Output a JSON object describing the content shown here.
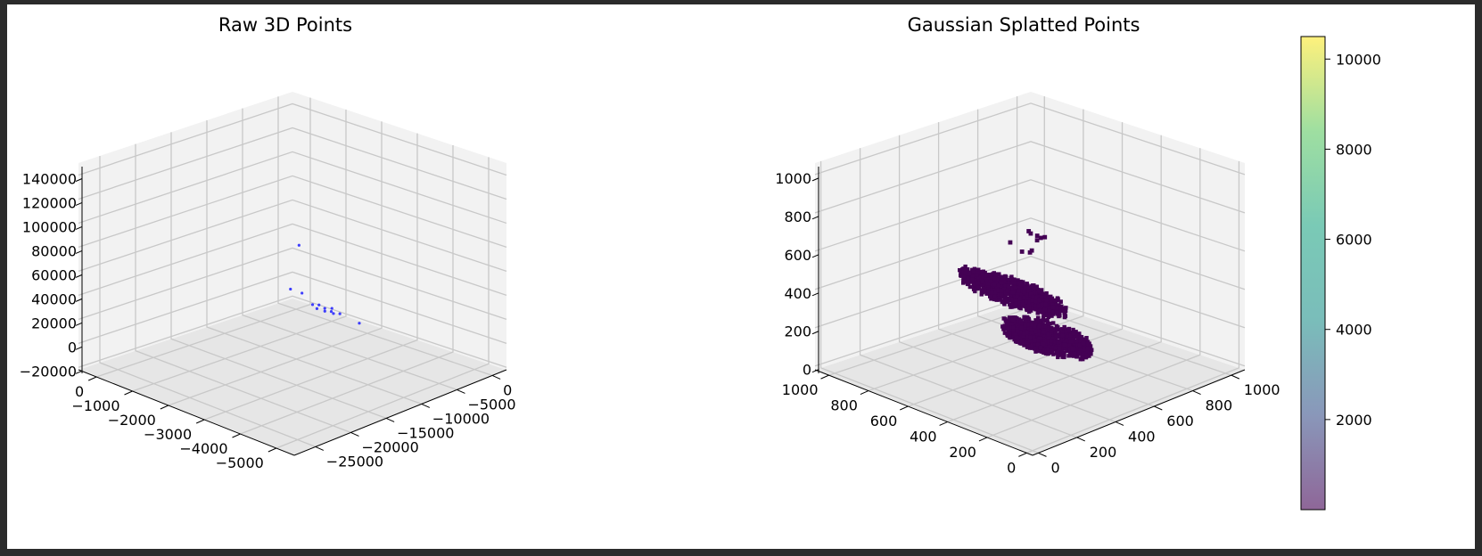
{
  "colors": {
    "frame": "#2b2b2b",
    "pane_left": "#f2f2f2",
    "pane_right": "#f2f2f2",
    "pane_floor": "#e6e6e6",
    "grid": "#c8c8c8",
    "raw_points": "#1f1fff",
    "splat_points": "#440154"
  },
  "chart_data": [
    {
      "type": "scatter",
      "subtype": "3d",
      "title": "Raw 3D Points",
      "x_ticks": [
        "−5000",
        "−4000",
        "−3000",
        "−2000",
        "−1000",
        "0"
      ],
      "y_ticks": [
        "−25000",
        "−20000",
        "−15000",
        "−10000",
        "−5000",
        "0"
      ],
      "z_ticks": [
        "−20000",
        "0",
        "20000",
        "40000",
        "60000",
        "80000",
        "100000",
        "120000",
        "140000"
      ],
      "xlim": [
        -5500,
        500
      ],
      "ylim": [
        -28000,
        2000
      ],
      "zlim": [
        -22000,
        150000
      ],
      "grid": true,
      "points": [
        {
          "x": -5200,
          "y": -25800,
          "z": 144000
        },
        {
          "x": -1000,
          "y": 200,
          "z": -20000
        },
        {
          "x": -700,
          "y": -100,
          "z": -20000
        },
        {
          "x": -1200,
          "y": -600,
          "z": -20000
        },
        {
          "x": -900,
          "y": -300,
          "z": -20000
        },
        {
          "x": -800,
          "y": -900,
          "z": -20000
        },
        {
          "x": -1300,
          "y": -200,
          "z": -20000
        },
        {
          "x": -1000,
          "y": -800,
          "z": -20000
        },
        {
          "x": -600,
          "y": -500,
          "z": -20000
        },
        {
          "x": -1100,
          "y": -400,
          "z": -20000
        },
        {
          "x": -50,
          "y": 800,
          "z": -20000
        },
        {
          "x": 250,
          "y": 700,
          "z": -20000
        },
        {
          "x": -1900,
          "y": -500,
          "z": -20000
        }
      ]
    },
    {
      "type": "scatter",
      "subtype": "3d",
      "title": "Gaussian Splatted Points",
      "x_ticks": [
        "0",
        "200",
        "400",
        "600",
        "800",
        "1000"
      ],
      "y_ticks": [
        "0",
        "200",
        "400",
        "600",
        "800",
        "1000"
      ],
      "z_ticks": [
        "0",
        "200",
        "400",
        "600",
        "800",
        "1000"
      ],
      "xlim": [
        -30,
        1070
      ],
      "ylim": [
        -30,
        1070
      ],
      "zlim": [
        -20,
        1060
      ],
      "grid": true,
      "colorbar": {
        "ticks": [
          "2000",
          "4000",
          "6000",
          "8000",
          "10000"
        ],
        "range": [
          0,
          10500
        ],
        "colormap": "viridis"
      },
      "clusters": [
        {
          "cx": 560,
          "cy": 650,
          "z": 80,
          "rx": 210,
          "ry": 90,
          "n": 900
        },
        {
          "cx": 470,
          "cy": 380,
          "z": 460,
          "rx": 260,
          "ry": 70,
          "n": 1100
        }
      ],
      "points": [
        {
          "x": 200,
          "y": 90,
          "z": 950
        },
        {
          "x": 110,
          "y": 100,
          "z": 930
        },
        {
          "x": 130,
          "y": 130,
          "z": 920
        },
        {
          "x": 160,
          "y": 110,
          "z": 910
        },
        {
          "x": 210,
          "y": 240,
          "z": 920
        },
        {
          "x": 230,
          "y": 300,
          "z": 880
        },
        {
          "x": 230,
          "y": 260,
          "z": 880
        },
        {
          "x": 260,
          "y": 310,
          "z": 860
        },
        {
          "x": 370,
          "y": 360,
          "z": 830
        },
        {
          "x": 350,
          "y": 350,
          "z": 830
        }
      ]
    }
  ]
}
